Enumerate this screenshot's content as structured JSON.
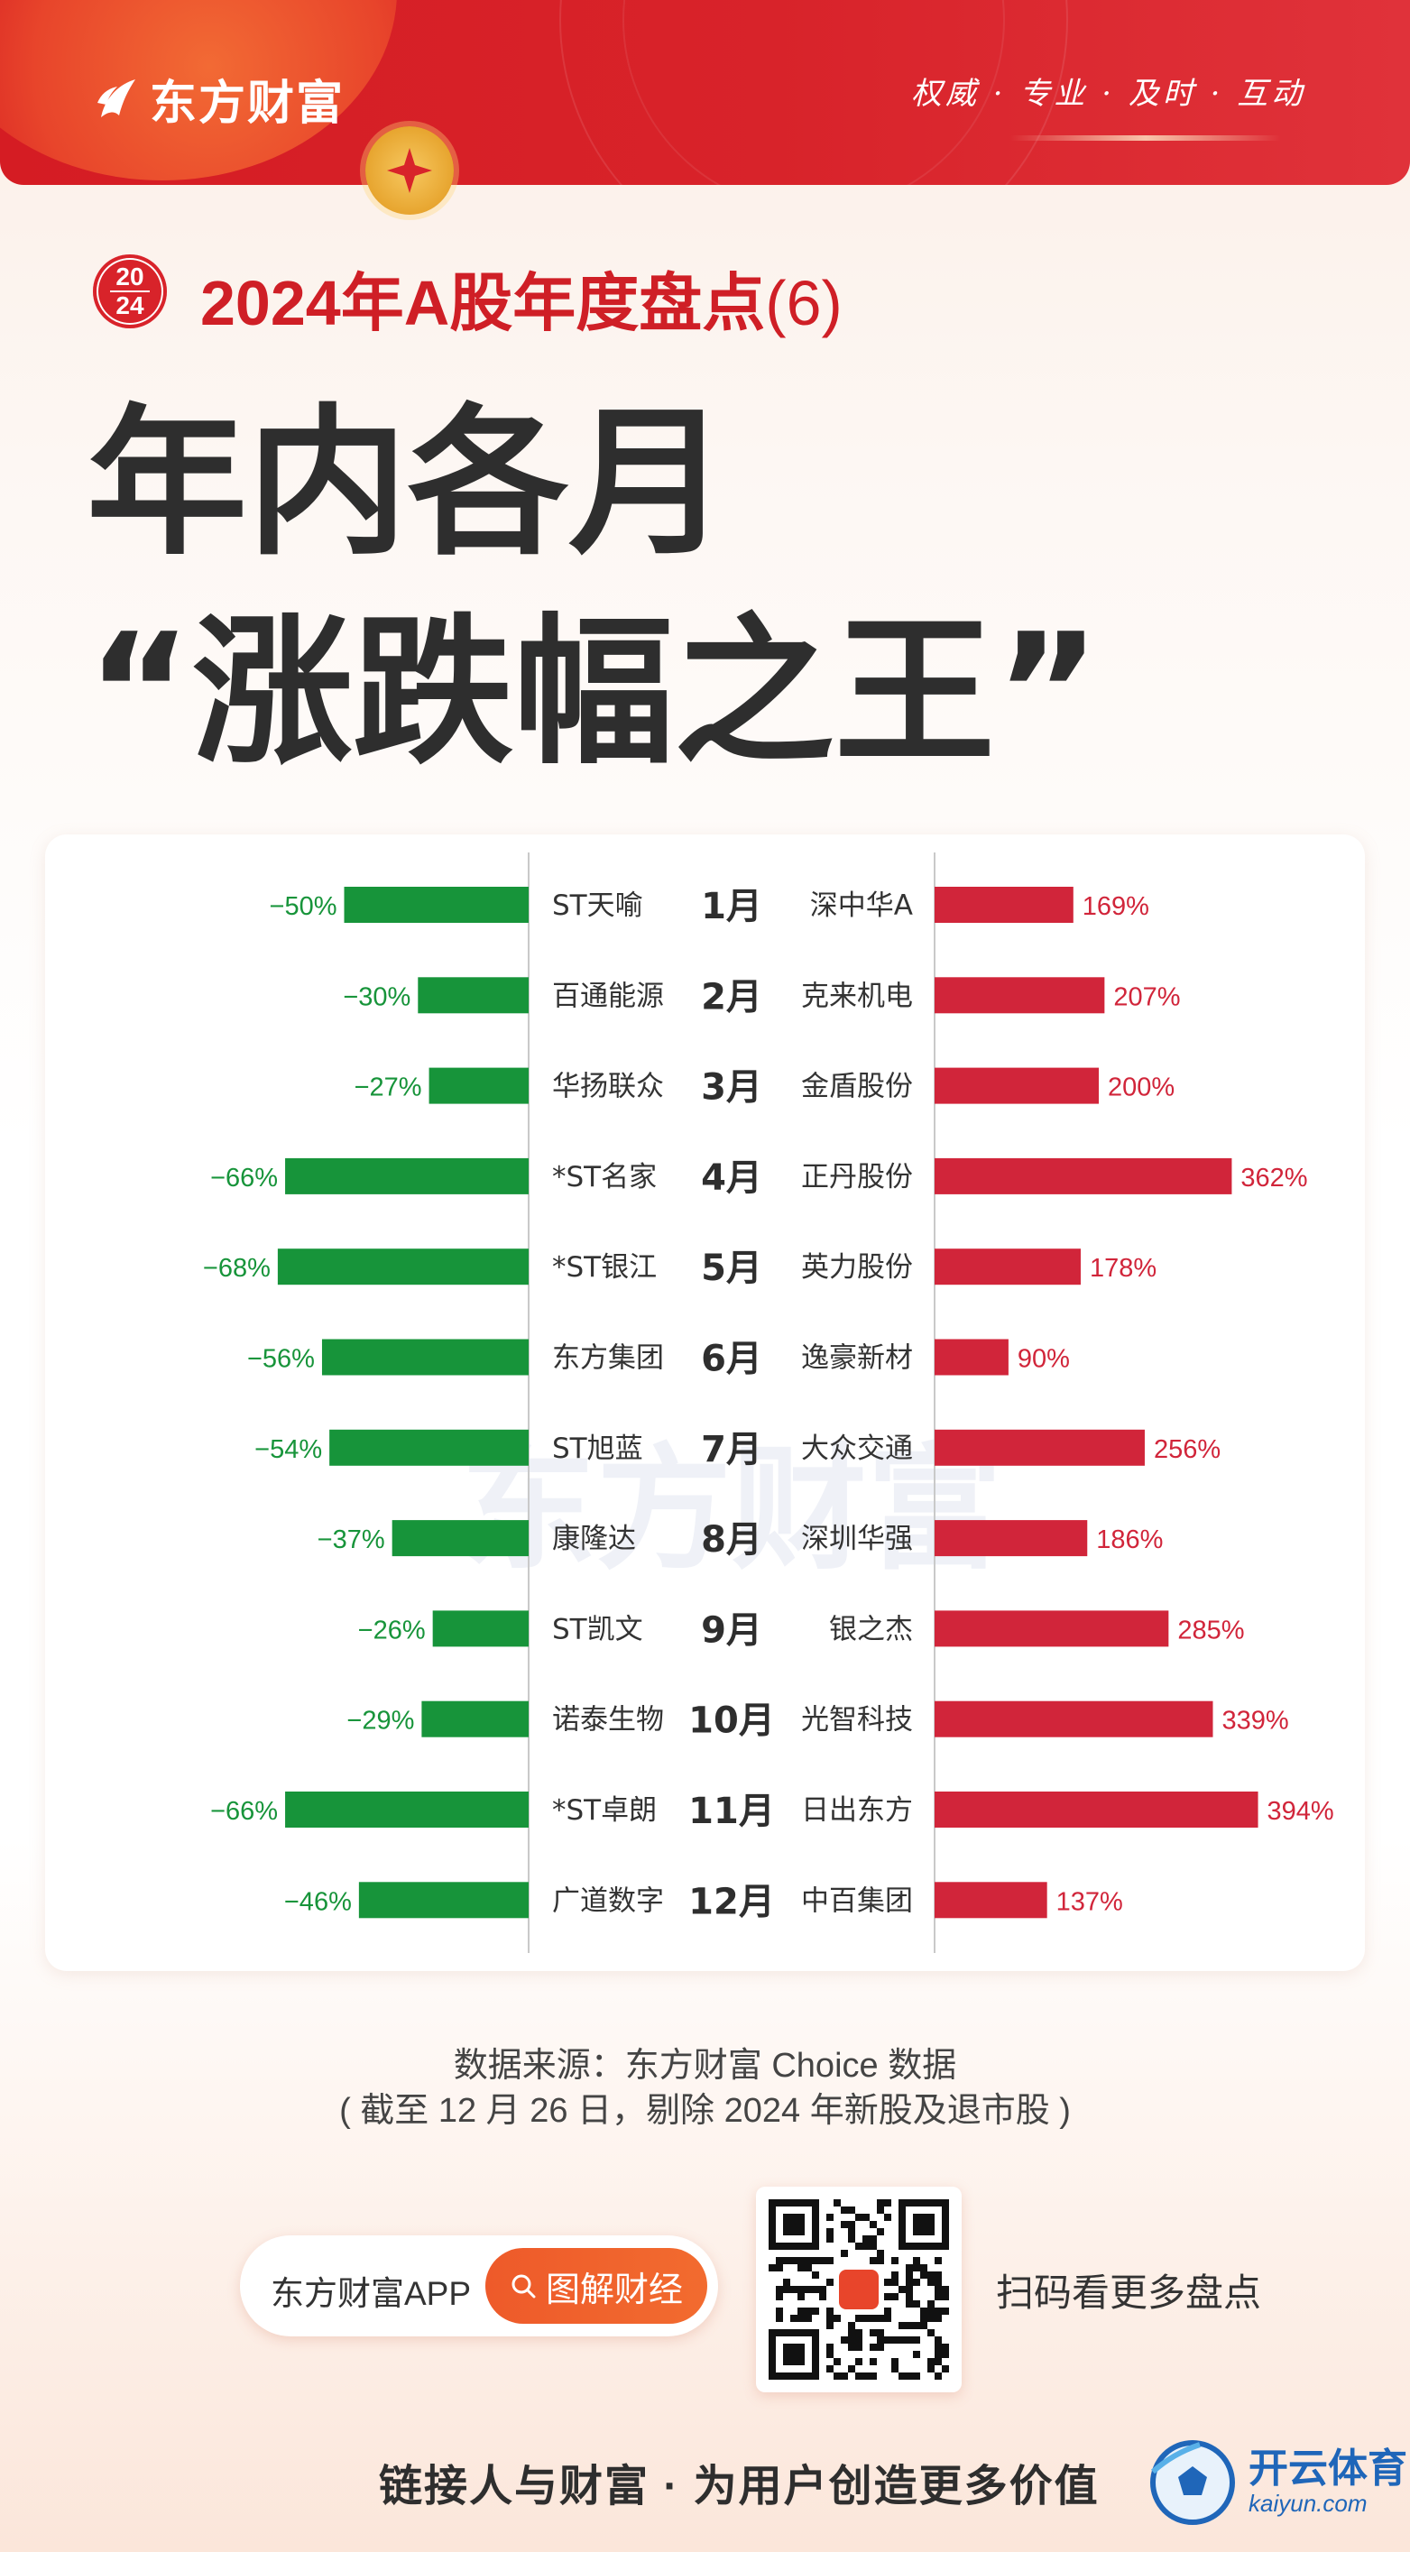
{
  "header": {
    "brand": "东方财富",
    "slogan": "权威 · 专业 · 及时 · 互动",
    "brand_color": "#d8232a"
  },
  "badge": {
    "top": "20",
    "bottom": "24"
  },
  "subtitle": {
    "text": "2024年A股年度盘点",
    "num": "(6)"
  },
  "title": {
    "line1": "年内各月",
    "line2": "“涨跌幅之王”"
  },
  "chart_data": {
    "type": "bar",
    "watermark": "东方财富",
    "categories": [
      "1月",
      "2月",
      "3月",
      "4月",
      "5月",
      "6月",
      "7月",
      "8月",
      "9月",
      "10月",
      "11月",
      "12月"
    ],
    "losers": {
      "color": "#17943a",
      "stocks": [
        "ST天喻",
        "百通能源",
        "华扬联众",
        "*ST名家",
        "*ST银江",
        "东方集团",
        "ST旭蓝",
        "康隆达",
        "ST凯文",
        "诺泰生物",
        "*ST卓朗",
        "广道数字"
      ],
      "values": [
        -50,
        -30,
        -27,
        -66,
        -68,
        -56,
        -54,
        -37,
        -26,
        -29,
        -66,
        -46
      ],
      "labels": [
        "−50%",
        "−30%",
        "−27%",
        "−66%",
        "−68%",
        "−56%",
        "−54%",
        "−37%",
        "−26%",
        "−29%",
        "−66%",
        "−46%"
      ]
    },
    "gainers": {
      "color": "#d1253a",
      "stocks": [
        "深中华A",
        "克来机电",
        "金盾股份",
        "正丹股份",
        "英力股份",
        "逸豪新材",
        "大众交通",
        "深圳华强",
        "银之杰",
        "光智科技",
        "日出东方",
        "中百集团"
      ],
      "values": [
        169,
        207,
        200,
        362,
        178,
        90,
        256,
        186,
        285,
        339,
        394,
        137
      ],
      "labels": [
        "169%",
        "207%",
        "200%",
        "362%",
        "178%",
        "90%",
        "256%",
        "186%",
        "285%",
        "339%",
        "394%",
        "137%"
      ]
    }
  },
  "source": {
    "line1": "数据来源：东方财富 Choice 数据",
    "line2": "( 截至 12 月 26 日，剔除 2024 年新股及退市股 )"
  },
  "app": {
    "name": "东方财富APP",
    "button": "图解财经"
  },
  "qr_hint": "扫码看更多盘点",
  "footer": {
    "slogan": "链接人与财富 · 为用户创造更多价值"
  },
  "watermark_logo": {
    "cn": "开云体育",
    "en": "kaiyun.com"
  }
}
